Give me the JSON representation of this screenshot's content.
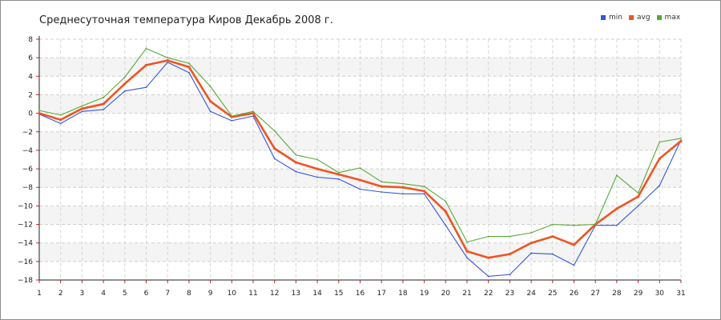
{
  "chart_data": {
    "type": "line",
    "title": "Среднесуточная температура Киров  Декабрь 2008 г.",
    "xlabel": "",
    "ylabel": "",
    "x": [
      1,
      2,
      3,
      4,
      5,
      6,
      7,
      8,
      9,
      10,
      11,
      12,
      13,
      14,
      15,
      16,
      17,
      18,
      19,
      20,
      21,
      22,
      23,
      24,
      25,
      26,
      27,
      28,
      29,
      30,
      31
    ],
    "xlim": [
      1,
      31
    ],
    "ylim": [
      -18,
      8
    ],
    "yticks": [
      8,
      6,
      4,
      2,
      0,
      -2,
      -4,
      -6,
      -8,
      -10,
      -12,
      -14,
      -16,
      -18
    ],
    "grid": true,
    "legend_position": "top-right",
    "series": [
      {
        "name": "min",
        "color": "#3355dd",
        "values": [
          -0.1,
          -1.1,
          0.2,
          0.4,
          2.4,
          2.8,
          5.5,
          4.4,
          0.2,
          -0.8,
          -0.3,
          -4.9,
          -6.3,
          -6.9,
          -7.1,
          -8.2,
          -8.5,
          -8.7,
          -8.7,
          -12.1,
          -15.6,
          -17.6,
          -17.4,
          -15.1,
          -15.2,
          -16.4,
          -12.1,
          -12.1,
          -10.0,
          -7.8,
          -2.9
        ]
      },
      {
        "name": "avg",
        "color": "#ee5522",
        "values": [
          0.0,
          -0.7,
          0.5,
          1.0,
          3.2,
          5.2,
          5.7,
          5.0,
          1.3,
          -0.4,
          0.0,
          -3.8,
          -5.3,
          -6.0,
          -6.6,
          -7.2,
          -7.9,
          -8.0,
          -8.4,
          -10.6,
          -14.9,
          -15.6,
          -15.2,
          -14.0,
          -13.3,
          -14.2,
          -12.0,
          -10.3,
          -9.0,
          -4.9,
          -3.0
        ]
      },
      {
        "name": "max",
        "color": "#55aa33",
        "values": [
          0.3,
          -0.2,
          0.8,
          1.7,
          3.9,
          7.0,
          6.0,
          5.4,
          2.9,
          -0.3,
          0.2,
          -1.9,
          -4.5,
          -5.0,
          -6.4,
          -5.9,
          -7.4,
          -7.6,
          -7.9,
          -9.5,
          -13.9,
          -13.3,
          -13.3,
          -12.9,
          -12.0,
          -12.1,
          -12.0,
          -6.7,
          -8.6,
          -3.1,
          -2.7
        ]
      }
    ]
  }
}
